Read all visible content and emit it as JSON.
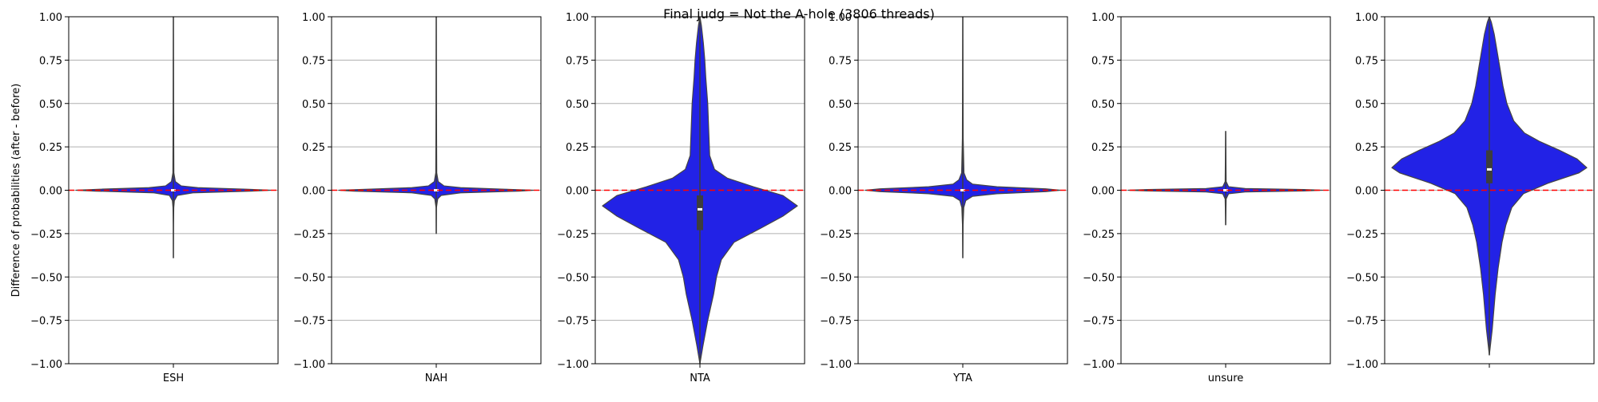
{
  "suptitle": "Final judg = Not the A-hole (3806 threads)",
  "ylabel": "Difference of probabilities (after - before)",
  "ytick_labels": [
    "1.00",
    "0.75",
    "0.50",
    "0.25",
    "0.00",
    "−0.25",
    "−0.50",
    "−0.75",
    "−1.00"
  ],
  "colors": {
    "violin_fill": "#2222e6",
    "violin_edge": "#444444",
    "zero_line": "#ff0000",
    "grid": "#b0b0b0"
  },
  "chart_data": [
    {
      "type": "violin",
      "xlabel": "ESH",
      "ylim": [
        -1,
        1
      ],
      "grid": "y",
      "reference_line": 0,
      "range": [
        -0.39,
        1.0
      ],
      "q1": -0.003,
      "median": 0.0,
      "q3": 0.003,
      "profile": [
        [
          -0.39,
          0.0
        ],
        [
          -0.2,
          0.001
        ],
        [
          -0.1,
          0.004
        ],
        [
          -0.06,
          0.01
        ],
        [
          -0.03,
          0.04
        ],
        [
          -0.015,
          0.2
        ],
        [
          -0.005,
          0.8
        ],
        [
          0.0,
          1.0
        ],
        [
          0.006,
          0.75
        ],
        [
          0.015,
          0.25
        ],
        [
          0.025,
          0.08
        ],
        [
          0.05,
          0.02
        ],
        [
          0.1,
          0.005
        ],
        [
          0.5,
          0.002
        ],
        [
          1.0,
          0.0
        ]
      ]
    },
    {
      "type": "violin",
      "xlabel": "NAH",
      "ylim": [
        -1,
        1
      ],
      "grid": "y",
      "reference_line": 0,
      "range": [
        -0.25,
        1.0
      ],
      "q1": -0.003,
      "median": 0.0,
      "q3": 0.003,
      "profile": [
        [
          -0.25,
          0.0
        ],
        [
          -0.1,
          0.002
        ],
        [
          -0.05,
          0.015
        ],
        [
          -0.03,
          0.05
        ],
        [
          -0.015,
          0.25
        ],
        [
          -0.005,
          0.85
        ],
        [
          0.0,
          1.0
        ],
        [
          0.006,
          0.7
        ],
        [
          0.015,
          0.25
        ],
        [
          0.025,
          0.08
        ],
        [
          0.05,
          0.02
        ],
        [
          0.1,
          0.005
        ],
        [
          0.5,
          0.002
        ],
        [
          1.0,
          0.0
        ]
      ]
    },
    {
      "type": "violin",
      "xlabel": "NTA",
      "ylim": [
        -1,
        1
      ],
      "grid": "y",
      "reference_line": 0,
      "range": [
        -1.0,
        1.0
      ],
      "q1": -0.23,
      "median": -0.11,
      "q3": -0.03,
      "profile": [
        [
          -1.0,
          0.0
        ],
        [
          -0.9,
          0.03
        ],
        [
          -0.75,
          0.08
        ],
        [
          -0.6,
          0.14
        ],
        [
          -0.5,
          0.17
        ],
        [
          -0.4,
          0.22
        ],
        [
          -0.3,
          0.35
        ],
        [
          -0.22,
          0.62
        ],
        [
          -0.15,
          0.85
        ],
        [
          -0.09,
          1.0
        ],
        [
          -0.03,
          0.85
        ],
        [
          0.02,
          0.55
        ],
        [
          0.07,
          0.28
        ],
        [
          0.12,
          0.15
        ],
        [
          0.2,
          0.1
        ],
        [
          0.35,
          0.09
        ],
        [
          0.5,
          0.08
        ],
        [
          0.65,
          0.06
        ],
        [
          0.75,
          0.05
        ],
        [
          0.85,
          0.035
        ],
        [
          0.95,
          0.015
        ],
        [
          1.0,
          0.0
        ]
      ]
    },
    {
      "type": "violin",
      "xlabel": "YTA",
      "ylim": [
        -1,
        1
      ],
      "grid": "y",
      "reference_line": 0,
      "range": [
        -0.39,
        1.0
      ],
      "q1": -0.004,
      "median": 0.0,
      "q3": 0.004,
      "profile": [
        [
          -0.39,
          0.0
        ],
        [
          -0.2,
          0.003
        ],
        [
          -0.1,
          0.01
        ],
        [
          -0.06,
          0.03
        ],
        [
          -0.035,
          0.1
        ],
        [
          -0.02,
          0.35
        ],
        [
          -0.008,
          0.85
        ],
        [
          0.0,
          1.0
        ],
        [
          0.008,
          0.85
        ],
        [
          0.02,
          0.35
        ],
        [
          0.035,
          0.1
        ],
        [
          0.06,
          0.04
        ],
        [
          0.1,
          0.012
        ],
        [
          0.3,
          0.004
        ],
        [
          1.0,
          0.0
        ]
      ]
    },
    {
      "type": "violin",
      "xlabel": "unsure",
      "ylim": [
        -1,
        1
      ],
      "grid": "y",
      "reference_line": 0,
      "range": [
        -0.2,
        0.34
      ],
      "q1": -0.002,
      "median": 0.0,
      "q3": 0.002,
      "profile": [
        [
          -0.2,
          0.0
        ],
        [
          -0.05,
          0.005
        ],
        [
          -0.02,
          0.03
        ],
        [
          -0.01,
          0.2
        ],
        [
          -0.004,
          0.8
        ],
        [
          0.0,
          1.0
        ],
        [
          0.004,
          0.8
        ],
        [
          0.01,
          0.2
        ],
        [
          0.02,
          0.03
        ],
        [
          0.05,
          0.005
        ],
        [
          0.34,
          0.0
        ]
      ]
    },
    {
      "type": "violin",
      "xlabel": "",
      "ylim": [
        -1,
        1
      ],
      "grid": "y",
      "reference_line": 0,
      "range": [
        -0.95,
        1.0
      ],
      "q1": 0.04,
      "median": 0.12,
      "q3": 0.23,
      "profile": [
        [
          -0.95,
          0.0
        ],
        [
          -0.8,
          0.03
        ],
        [
          -0.6,
          0.06
        ],
        [
          -0.45,
          0.09
        ],
        [
          -0.3,
          0.13
        ],
        [
          -0.2,
          0.17
        ],
        [
          -0.1,
          0.23
        ],
        [
          -0.02,
          0.35
        ],
        [
          0.04,
          0.6
        ],
        [
          0.1,
          0.92
        ],
        [
          0.13,
          1.0
        ],
        [
          0.18,
          0.9
        ],
        [
          0.23,
          0.72
        ],
        [
          0.28,
          0.52
        ],
        [
          0.33,
          0.36
        ],
        [
          0.4,
          0.25
        ],
        [
          0.5,
          0.18
        ],
        [
          0.6,
          0.14
        ],
        [
          0.7,
          0.11
        ],
        [
          0.8,
          0.08
        ],
        [
          0.9,
          0.05
        ],
        [
          0.97,
          0.02
        ],
        [
          1.0,
          0.0
        ]
      ]
    }
  ]
}
